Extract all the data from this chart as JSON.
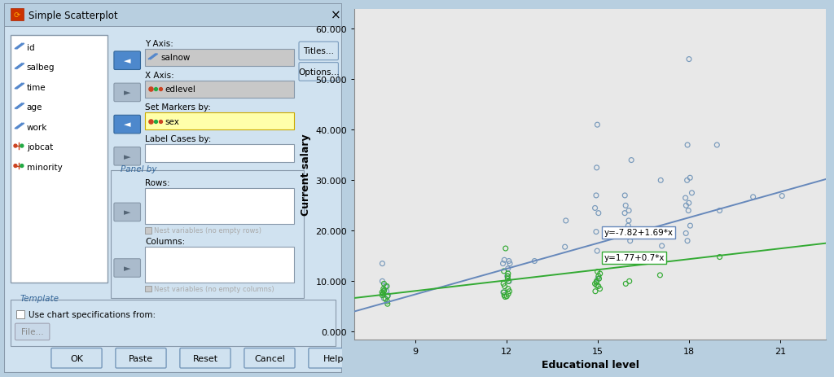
{
  "plot_area_color": "#e8e8e8",
  "dialog_bg": "#ccdded",
  "blue_color": "#7799bb",
  "green_color": "#33aa33",
  "line_blue": "#6688bb",
  "line_green": "#33aa33",
  "xlabel": "Educational level",
  "ylabel": "Current salary",
  "xticks": [
    9,
    12,
    15,
    18,
    21
  ],
  "yticks": [
    0,
    10000,
    20000,
    30000,
    40000,
    50000,
    60000
  ],
  "ytick_labels": [
    "0.000",
    "10.000",
    "20.000",
    "30.000",
    "40.000",
    "50.000",
    "60.000"
  ],
  "xlim": [
    7.0,
    22.5
  ],
  "ylim": [
    -1500,
    64000
  ],
  "eq_blue": "y=-7.82+1.69*x",
  "eq_green": "y=1.77+0.7*x",
  "blue_intercept": -7820,
  "blue_slope": 1690,
  "green_intercept": 1770,
  "green_slope": 700,
  "blue_points_x": [
    8,
    8,
    8,
    8,
    8,
    8,
    12,
    12,
    12,
    12,
    12,
    12,
    12,
    12,
    13,
    14,
    14,
    15,
    15,
    15,
    15,
    15,
    15,
    15,
    15,
    16,
    16,
    16,
    16,
    16,
    16,
    16,
    16,
    16,
    17,
    17,
    18,
    18,
    18,
    18,
    18,
    18,
    18,
    18,
    18,
    18,
    18,
    18,
    19,
    19,
    20,
    21
  ],
  "blue_points_y": [
    6600,
    7200,
    8000,
    9000,
    10000,
    13500,
    7800,
    10000,
    11000,
    12500,
    13500,
    13500,
    14000,
    14200,
    14000,
    16800,
    22000,
    10500,
    16000,
    19800,
    23500,
    24500,
    27000,
    32500,
    41000,
    18000,
    19000,
    21000,
    22000,
    23500,
    24000,
    25000,
    27000,
    34000,
    17000,
    30000,
    18000,
    19500,
    21000,
    24000,
    25000,
    25500,
    26500,
    27500,
    30000,
    30500,
    37000,
    54000,
    24000,
    37000,
    26700,
    26900
  ],
  "green_points_x": [
    8,
    8,
    8,
    8,
    8,
    8,
    8,
    8,
    8,
    8,
    8,
    8,
    12,
    12,
    12,
    12,
    12,
    12,
    12,
    12,
    12,
    12,
    12,
    12,
    12,
    12,
    12,
    15,
    15,
    15,
    15,
    15,
    15,
    15,
    15,
    15,
    15,
    15,
    16,
    16,
    17,
    19
  ],
  "green_points_y": [
    5500,
    6000,
    6500,
    7000,
    7200,
    7500,
    7800,
    8000,
    8200,
    8500,
    9000,
    9500,
    6900,
    7000,
    7200,
    7500,
    7800,
    8000,
    8500,
    9000,
    9500,
    10000,
    10500,
    11000,
    11500,
    12000,
    16500,
    8000,
    8500,
    9000,
    9200,
    9500,
    9800,
    10000,
    10500,
    11000,
    11500,
    11900,
    9500,
    10000,
    11200,
    14800
  ]
}
